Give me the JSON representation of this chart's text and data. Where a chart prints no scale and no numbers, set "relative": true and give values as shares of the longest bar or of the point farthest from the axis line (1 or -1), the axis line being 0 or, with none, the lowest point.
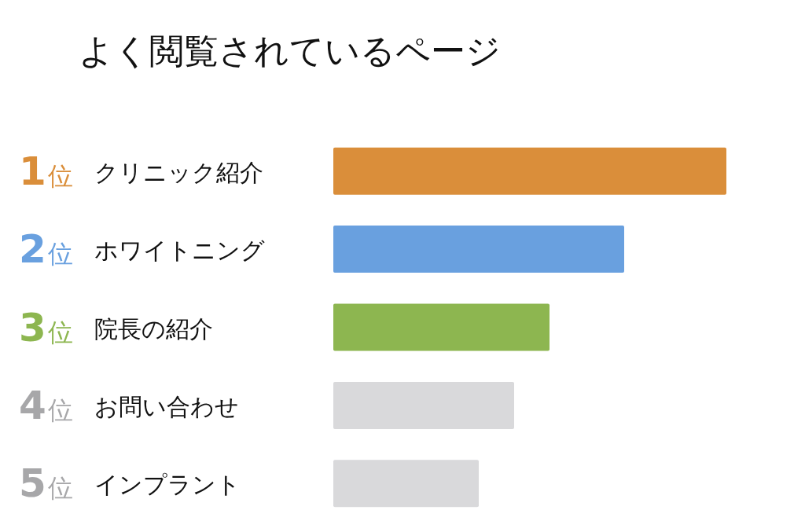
{
  "chart_data": {
    "type": "bar",
    "orientation": "horizontal",
    "relative": true,
    "title": "よく閲覧されているページ",
    "categories": [
      "1位 クリニック紹介",
      "2位 ホワイトニング",
      "3位 院長の紹介",
      "4位 お問い合わせ",
      "5位 インプラント"
    ],
    "values": [
      1,
      0.74,
      0.55,
      0.46,
      0.37
    ],
    "colors": [
      "#da8e3a",
      "#69a0df",
      "#8db650",
      "#d9d9db",
      "#d9d9db"
    ]
  }
}
